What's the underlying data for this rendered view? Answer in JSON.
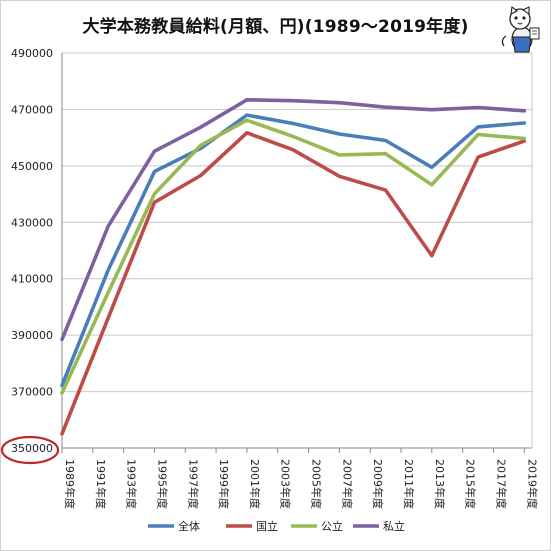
{
  "colors": {
    "all": "#4a7ebb",
    "national": "#be4b48",
    "public": "#98b954",
    "private": "#7d60a0",
    "highlight": "#c0282a",
    "grid": "#c8c8c8",
    "axis": "#888888"
  },
  "chart_data": {
    "type": "line",
    "title": "大学本務教員給料(月額、円)(1989～2019年度)",
    "xlabel": "",
    "ylabel": "",
    "ylim": [
      350000,
      490000
    ],
    "y_ticks": [
      {
        "value": 350000,
        "label": "350000"
      },
      {
        "value": 370000,
        "label": "370000"
      },
      {
        "value": 390000,
        "label": "390000"
      },
      {
        "value": 410000,
        "label": "410000"
      },
      {
        "value": 430000,
        "label": "430000"
      },
      {
        "value": 450000,
        "label": "450000"
      },
      {
        "value": 470000,
        "label": "470000"
      },
      {
        "value": 490000,
        "label": "490000"
      }
    ],
    "categories": [
      "1989年度",
      "1991年度",
      "1993年度",
      "1995年度",
      "1997年度",
      "1999年度",
      "2001年度",
      "2003年度",
      "2005年度",
      "2007年度",
      "2009年度",
      "2011年度",
      "2013年度",
      "2015年度",
      "2017年度",
      "2019年度"
    ],
    "x": [
      1989,
      1992,
      1995,
      1998,
      2001,
      2004,
      2007,
      2010,
      2013,
      2016,
      2019
    ],
    "series": [
      {
        "name": "全体",
        "color_key": "all",
        "values": [
          372200,
          413100,
          448000,
          456200,
          468000,
          465000,
          461300,
          459000,
          449500,
          463800,
          465200
        ]
      },
      {
        "name": "国立",
        "color_key": "national",
        "values": [
          355000,
          396100,
          437100,
          446600,
          461700,
          455700,
          446300,
          441400,
          418200,
          453100,
          458800
        ]
      },
      {
        "name": "公立",
        "color_key": "public",
        "values": [
          369500,
          405100,
          440100,
          457300,
          466200,
          460400,
          453900,
          454300,
          443300,
          461100,
          459700
        ]
      },
      {
        "name": "私立",
        "color_key": "private",
        "values": [
          388500,
          428600,
          455200,
          463700,
          473400,
          473100,
          472400,
          470800,
          469900,
          470700,
          469500
        ]
      }
    ],
    "grid": true,
    "legend_position": "bottom",
    "annotations": [
      {
        "type": "ellipse",
        "target_tick": "350000"
      }
    ]
  }
}
